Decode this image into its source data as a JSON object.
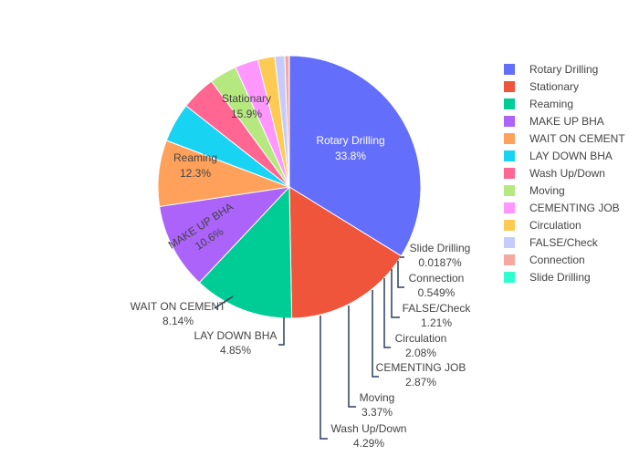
{
  "chart_data": {
    "type": "pie",
    "title": "",
    "legend_position": "right",
    "slices": [
      {
        "label": "Rotary Drilling",
        "percent_label": "33.8%",
        "value": 33.8,
        "color": "#636efa"
      },
      {
        "label": "Stationary",
        "percent_label": "15.9%",
        "value": 15.9,
        "color": "#ef553b"
      },
      {
        "label": "Reaming",
        "percent_label": "12.3%",
        "value": 12.3,
        "color": "#00cc96"
      },
      {
        "label": "MAKE UP BHA",
        "percent_label": "10.6%",
        "value": 10.6,
        "color": "#ab63fa"
      },
      {
        "label": "WAIT ON CEMENT",
        "percent_label": "8.14%",
        "value": 8.14,
        "color": "#ffa15a"
      },
      {
        "label": "LAY DOWN BHA",
        "percent_label": "4.85%",
        "value": 4.85,
        "color": "#19d3f3"
      },
      {
        "label": "Wash Up/Down",
        "percent_label": "4.29%",
        "value": 4.29,
        "color": "#ff6692"
      },
      {
        "label": "Moving",
        "percent_label": "3.37%",
        "value": 3.37,
        "color": "#b6e880"
      },
      {
        "label": "CEMENTING JOB",
        "percent_label": "2.87%",
        "value": 2.87,
        "color": "#ff97ff"
      },
      {
        "label": "Circulation",
        "percent_label": "2.08%",
        "value": 2.08,
        "color": "#fecb52"
      },
      {
        "label": "FALSE/Check",
        "percent_label": "1.21%",
        "value": 1.21,
        "color": "#c6cbfd"
      },
      {
        "label": "Connection",
        "percent_label": "0.549%",
        "value": 0.549,
        "color": "#f6a89e"
      },
      {
        "label": "Slide Drilling",
        "percent_label": "0.0187%",
        "value": 0.0187,
        "color": "#2effd0"
      }
    ]
  }
}
